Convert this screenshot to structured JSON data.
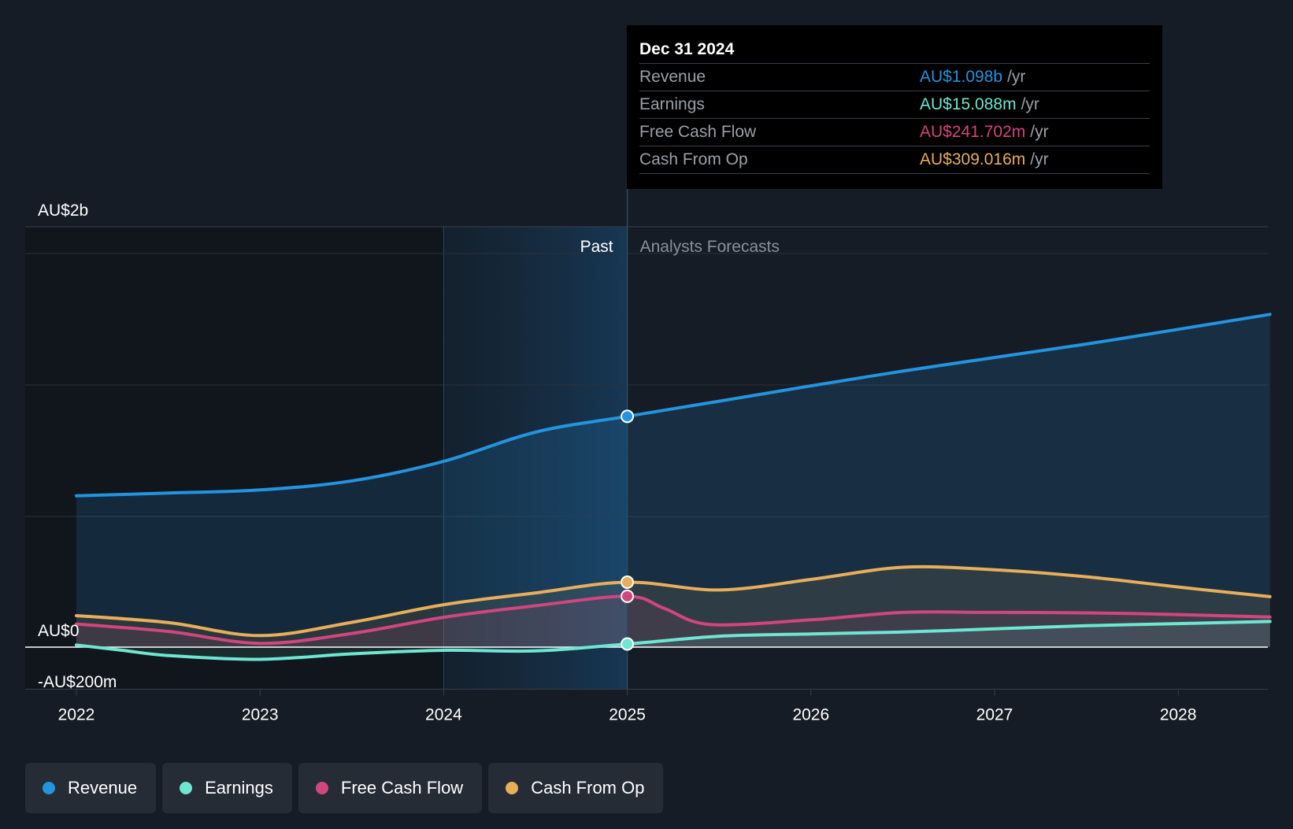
{
  "chart_data": {
    "type": "line",
    "x_ticks": [
      "2022",
      "2023",
      "2024",
      "2025",
      "2026",
      "2027",
      "2028"
    ],
    "y_labels": {
      "top": "AU$2b",
      "zero": "AU$0",
      "bottom": "-AU$200m"
    },
    "ylim": [
      -200,
      2000
    ],
    "region_labels": {
      "past": "Past",
      "forecast": "Analysts Forecasts"
    },
    "series": [
      {
        "name": "Revenue",
        "color": "#2394df",
        "points": [
          [
            2022.0,
            720
          ],
          [
            2022.5,
            733
          ],
          [
            2023.0,
            748
          ],
          [
            2023.5,
            791
          ],
          [
            2024.0,
            884
          ],
          [
            2024.5,
            1023
          ],
          [
            2025.0,
            1098
          ],
          [
            2025.5,
            1170
          ],
          [
            2026.0,
            1243
          ],
          [
            2026.5,
            1313
          ],
          [
            2027.0,
            1378
          ],
          [
            2027.5,
            1442
          ],
          [
            2028.0,
            1512
          ],
          [
            2028.5,
            1583
          ]
        ]
      },
      {
        "name": "Earnings",
        "color": "#6ee7d2",
        "points": [
          [
            2022.0,
            10
          ],
          [
            2022.25,
            -15
          ],
          [
            2022.5,
            -40
          ],
          [
            2023.0,
            -58
          ],
          [
            2023.5,
            -32
          ],
          [
            2024.0,
            -15
          ],
          [
            2024.5,
            -18
          ],
          [
            2025.0,
            15
          ],
          [
            2025.5,
            52
          ],
          [
            2026.0,
            63
          ],
          [
            2026.5,
            72
          ],
          [
            2027.0,
            87
          ],
          [
            2027.5,
            102
          ],
          [
            2028.0,
            112
          ],
          [
            2028.5,
            122
          ]
        ]
      },
      {
        "name": "Free Cash Flow",
        "color": "#d1467d",
        "points": [
          [
            2022.0,
            110
          ],
          [
            2022.5,
            75
          ],
          [
            2023.0,
            18
          ],
          [
            2023.5,
            65
          ],
          [
            2024.0,
            142
          ],
          [
            2024.5,
            197
          ],
          [
            2025.0,
            242
          ],
          [
            2025.2,
            185
          ],
          [
            2025.45,
            108
          ],
          [
            2026.0,
            130
          ],
          [
            2026.5,
            165
          ],
          [
            2027.0,
            165
          ],
          [
            2027.5,
            163
          ],
          [
            2028.0,
            155
          ],
          [
            2028.5,
            143
          ]
        ]
      },
      {
        "name": "Cash From Op",
        "color": "#e8ae5a",
        "points": [
          [
            2022.0,
            150
          ],
          [
            2022.5,
            117
          ],
          [
            2023.0,
            55
          ],
          [
            2023.5,
            118
          ],
          [
            2024.0,
            202
          ],
          [
            2024.5,
            258
          ],
          [
            2025.0,
            309
          ],
          [
            2025.5,
            272
          ],
          [
            2026.0,
            322
          ],
          [
            2026.5,
            380
          ],
          [
            2027.0,
            368
          ],
          [
            2027.5,
            335
          ],
          [
            2028.0,
            286
          ],
          [
            2028.5,
            240
          ]
        ]
      }
    ],
    "tooltip": {
      "date": "Dec 31 2024",
      "rows": [
        {
          "label": "Revenue",
          "value": "AU$1.098b",
          "unit": "/yr",
          "color": "#2394df"
        },
        {
          "label": "Earnings",
          "value": "AU$15.088m",
          "unit": "/yr",
          "color": "#6ee7d2"
        },
        {
          "label": "Free Cash Flow",
          "value": "AU$241.702m",
          "unit": "/yr",
          "color": "#d1467d"
        },
        {
          "label": "Cash From Op",
          "value": "AU$309.016m",
          "unit": "/yr",
          "color": "#e8ae5a"
        }
      ]
    },
    "legend": [
      {
        "label": "Revenue",
        "color": "#2394df"
      },
      {
        "label": "Earnings",
        "color": "#6ee7d2"
      },
      {
        "label": "Free Cash Flow",
        "color": "#d1467d"
      },
      {
        "label": "Cash From Op",
        "color": "#e8ae5a"
      }
    ]
  }
}
